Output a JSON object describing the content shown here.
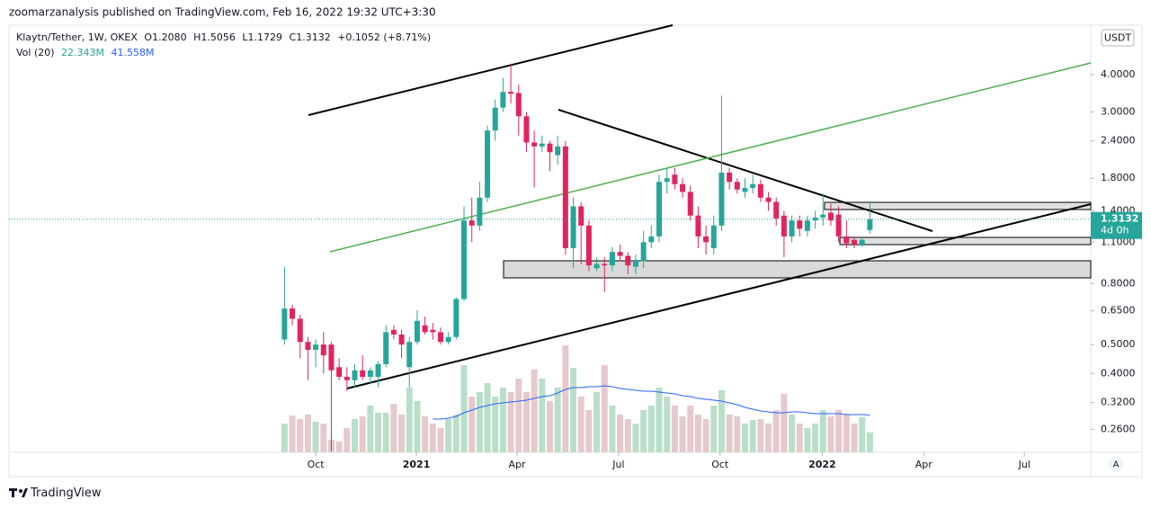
{
  "header": {
    "published": "zoomarzanalysis published on TradingView.com, Feb 16, 2022 19:32 UTC+3:30"
  },
  "legend": {
    "symbol": "Klaytn/Tether, 1W, OKEX",
    "o_label": "O",
    "o": "1.2080",
    "h_label": "H",
    "h": "1.5056",
    "l_label": "L",
    "l": "1.1729",
    "c_label": "C",
    "c": "1.3132",
    "change": "+0.1052 (+8.71%)",
    "vol_label": "Vol (20)",
    "vol": "22.343M",
    "vol_ma": "41.558M"
  },
  "price_axis": {
    "currency": "USDT",
    "countdown": "4d 0h",
    "scale_button": "A"
  },
  "footer": {
    "brand": "TradingView"
  },
  "chart_data": {
    "type": "candlestick",
    "log_scale": true,
    "grid": false,
    "up_color": "#26a69a",
    "down_color": "#e0245e",
    "vol_up_color": "#b9dfc9",
    "vol_down_color": "#e6c9cc",
    "vol_ma_color": "#2962ff",
    "x": [
      0,
      1,
      2,
      3,
      4,
      5,
      6,
      7,
      8,
      9,
      10,
      11,
      12,
      13,
      14,
      15,
      16,
      17,
      18,
      19,
      20,
      21,
      22,
      23,
      24,
      25,
      26,
      27,
      28,
      29,
      30,
      31,
      32,
      33,
      34,
      35,
      36,
      37,
      38,
      39,
      40,
      41,
      42,
      43,
      44,
      45,
      46,
      47,
      48,
      49,
      50,
      51,
      52,
      53,
      54,
      55,
      56,
      57,
      58,
      59,
      60,
      61,
      62,
      63,
      64,
      65,
      66,
      67,
      68,
      69,
      70,
      71,
      72,
      73,
      74,
      75
    ],
    "open": [
      0.52,
      0.66,
      0.61,
      0.51,
      0.48,
      0.5,
      0.5,
      0.42,
      0.39,
      0.38,
      0.41,
      0.39,
      0.39,
      0.43,
      0.56,
      0.54,
      0.42,
      0.51,
      0.58,
      0.56,
      0.55,
      0.51,
      0.53,
      0.71,
      1.3,
      1.25,
      1.55,
      2.6,
      3.1,
      3.5,
      3.47,
      2.9,
      2.37,
      2.3,
      2.35,
      2.15,
      2.3,
      1.05,
      1.45,
      1.25,
      0.9,
      0.93,
      0.92,
      1.02,
      0.99,
      0.91,
      0.95,
      1.1,
      1.15,
      1.75,
      1.85,
      1.72,
      1.62,
      1.35,
      1.15,
      1.05,
      1.25,
      1.88,
      1.75,
      1.62,
      1.67,
      1.72,
      1.55,
      1.5,
      1.35,
      1.15,
      1.3,
      1.2,
      1.3,
      1.33,
      1.38,
      1.36,
      1.15,
      1.12,
      1.08,
      1.208
    ],
    "high": [
      0.91,
      0.68,
      0.63,
      0.53,
      0.52,
      0.55,
      0.51,
      0.45,
      0.42,
      0.43,
      0.46,
      0.42,
      0.44,
      0.58,
      0.58,
      0.56,
      0.53,
      0.65,
      0.62,
      0.59,
      0.57,
      0.55,
      0.72,
      1.45,
      1.55,
      1.75,
      2.7,
      3.3,
      3.9,
      4.35,
      3.7,
      3.0,
      2.6,
      2.5,
      2.4,
      2.5,
      2.4,
      1.55,
      1.5,
      1.3,
      0.98,
      0.98,
      1.06,
      1.08,
      1.02,
      1.0,
      1.2,
      1.25,
      1.85,
      1.95,
      1.95,
      1.8,
      1.7,
      1.45,
      1.25,
      1.35,
      3.4,
      1.95,
      1.8,
      1.8,
      1.85,
      1.78,
      1.62,
      1.55,
      1.4,
      1.35,
      1.35,
      1.35,
      1.4,
      1.6,
      1.48,
      1.45,
      1.3,
      1.15,
      1.15,
      1.5056
    ],
    "low": [
      0.5,
      0.58,
      0.45,
      0.38,
      0.42,
      0.4,
      0.22,
      0.38,
      0.35,
      0.36,
      0.38,
      0.37,
      0.36,
      0.42,
      0.52,
      0.45,
      0.36,
      0.5,
      0.54,
      0.52,
      0.5,
      0.5,
      0.52,
      0.7,
      1.1,
      1.2,
      1.5,
      2.4,
      3.0,
      3.2,
      2.5,
      2.2,
      1.68,
      2.2,
      1.9,
      2.0,
      1.0,
      0.9,
      0.93,
      0.88,
      0.88,
      0.75,
      0.88,
      0.95,
      0.86,
      0.86,
      0.9,
      1.05,
      1.1,
      1.6,
      1.65,
      1.55,
      1.3,
      1.05,
      1.0,
      1.0,
      1.2,
      1.65,
      1.6,
      1.55,
      1.6,
      1.5,
      1.4,
      1.25,
      0.98,
      1.1,
      1.15,
      1.15,
      1.22,
      1.25,
      1.25,
      1.1,
      1.05,
      1.05,
      1.06,
      1.1729
    ],
    "close": [
      0.66,
      0.61,
      0.51,
      0.48,
      0.5,
      0.46,
      0.41,
      0.39,
      0.38,
      0.41,
      0.39,
      0.41,
      0.43,
      0.55,
      0.54,
      0.5,
      0.51,
      0.6,
      0.55,
      0.55,
      0.51,
      0.53,
      0.71,
      1.3,
      1.25,
      1.55,
      2.6,
      3.1,
      3.5,
      3.45,
      2.9,
      2.37,
      2.3,
      2.35,
      2.2,
      2.3,
      1.05,
      1.45,
      1.25,
      0.92,
      0.93,
      0.92,
      1.02,
      0.99,
      0.92,
      0.96,
      1.1,
      1.15,
      1.75,
      1.8,
      1.72,
      1.62,
      1.35,
      1.15,
      1.1,
      1.25,
      1.88,
      1.75,
      1.65,
      1.67,
      1.72,
      1.55,
      1.5,
      1.32,
      1.15,
      1.3,
      1.22,
      1.3,
      1.33,
      1.36,
      1.3,
      1.15,
      1.09,
      1.08,
      1.12,
      1.3132
    ],
    "volume": [
      32,
      41,
      37,
      42,
      34,
      32,
      14,
      12,
      27,
      37,
      40,
      52,
      44,
      44,
      54,
      42,
      72,
      57,
      40,
      32,
      27,
      37,
      42,
      97,
      62,
      67,
      77,
      62,
      72,
      67,
      82,
      67,
      92,
      82,
      57,
      72,
      119,
      94,
      62,
      47,
      67,
      97,
      52,
      42,
      37,
      32,
      47,
      52,
      72,
      62,
      52,
      40,
      52,
      42,
      37,
      52,
      69,
      42,
      40,
      32,
      36,
      37,
      32,
      47,
      65,
      42,
      32,
      27,
      32,
      47,
      40,
      47,
      42,
      32,
      39,
      22.343
    ],
    "volume_ma": [
      null,
      null,
      null,
      null,
      null,
      null,
      null,
      null,
      null,
      null,
      null,
      null,
      null,
      null,
      null,
      null,
      null,
      null,
      null,
      37,
      37,
      38,
      40,
      44,
      47,
      50,
      52,
      54,
      55,
      56,
      57,
      58,
      60,
      62,
      63,
      66,
      70,
      72,
      72,
      73,
      73,
      74,
      73,
      71,
      70,
      69,
      68,
      68,
      67,
      66,
      65,
      63,
      62,
      60,
      59,
      58,
      57,
      55,
      53,
      50,
      48,
      46,
      45,
      44,
      44,
      45,
      45,
      44,
      43,
      43,
      43,
      43,
      42,
      42,
      42,
      41.558
    ],
    "vol_lim": [
      0,
      140
    ],
    "xlim": [
      -35.3,
      103.3
    ],
    "xticks": [
      {
        "value": 4,
        "label": "Oct"
      },
      {
        "value": 16.9,
        "label": "2021"
      },
      {
        "value": 29.8,
        "label": "Apr"
      },
      {
        "value": 42.8,
        "label": "Jul"
      },
      {
        "value": 55.8,
        "label": "Oct"
      },
      {
        "value": 68.9,
        "label": "2022"
      },
      {
        "value": 81.9,
        "label": "Apr"
      },
      {
        "value": 94.8,
        "label": "Jul"
      }
    ],
    "ylim": [
      0.218,
      5.85
    ],
    "yticks": [
      {
        "value": 4,
        "label": "4.0000"
      },
      {
        "value": 3,
        "label": "3.0000"
      },
      {
        "value": 2.4,
        "label": "2.4000"
      },
      {
        "value": 1.8,
        "label": "1.8000"
      },
      {
        "value": 1.4,
        "label": "1.4000"
      },
      {
        "value": 1.1,
        "label": "1.1000"
      },
      {
        "value": 0.8,
        "label": "0.8000"
      },
      {
        "value": 0.65,
        "label": "0.6500"
      },
      {
        "value": 0.5,
        "label": "0.5000"
      },
      {
        "value": 0.4,
        "label": "0.4000"
      },
      {
        "value": 0.32,
        "label": "0.3200"
      },
      {
        "value": 0.26,
        "label": "0.2600"
      }
    ]
  }
}
